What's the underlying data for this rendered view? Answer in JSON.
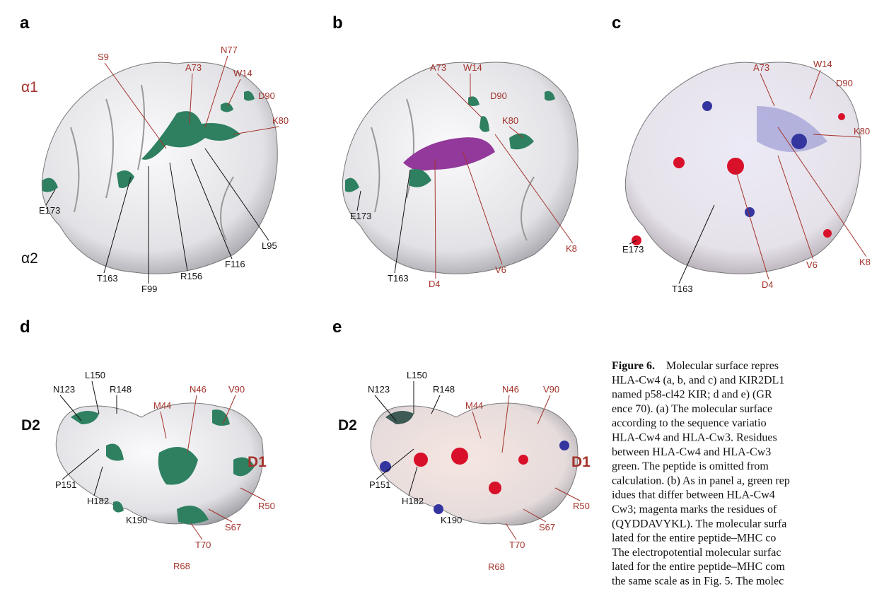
{
  "panels": [
    {
      "letter": "a",
      "labels": [
        "α1",
        "α2",
        "S9",
        "A73",
        "N77",
        "W14",
        "D90",
        "K80",
        "E173",
        "T163",
        "F99",
        "R156",
        "F116",
        "L95"
      ]
    },
    {
      "letter": "b",
      "labels": [
        "A73",
        "W14",
        "D90",
        "K80",
        "E173",
        "T163",
        "D4",
        "V6",
        "K8"
      ]
    },
    {
      "letter": "c",
      "labels": [
        "A73",
        "W14",
        "D90",
        "K80",
        "E173",
        "T163",
        "D4",
        "V6",
        "K8"
      ]
    },
    {
      "letter": "d",
      "labels": [
        "D2",
        "D1",
        "N123",
        "L150",
        "R148",
        "M44",
        "N46",
        "V90",
        "P151",
        "H182",
        "K190",
        "R68",
        "T70",
        "S67",
        "R50"
      ]
    },
    {
      "letter": "e",
      "labels": [
        "D2",
        "D1",
        "N123",
        "L150",
        "R148",
        "M44",
        "N46",
        "V90",
        "P151",
        "H182",
        "K190",
        "R68",
        "T70",
        "S67",
        "R50"
      ]
    }
  ],
  "caption": {
    "heading": "Figure 6.",
    "lines": [
      "Molecular surface repres",
      "HLA-Cw4 (a, b, and c) and KIR2DL1",
      "named p58-cl42 KIR; d and e) (GR",
      "ence 70). (a) The molecular surface",
      "according to the sequence variatio",
      "HLA-Cw4 and HLA-Cw3. Residues",
      "between HLA-Cw4 and HLA-Cw3",
      "green. The peptide is omitted from",
      "calculation. (b) As in panel a, green rep",
      "idues that differ between HLA-Cw4",
      "Cw3; magenta marks the residues of",
      "(QYDDAVYKL). The molecular surfa",
      "lated for the entire peptide–MHC co",
      "The electropotential molecular surfac",
      "lated for the entire peptide–MHC com",
      "the same scale as in Fig. 5. The molec"
    ]
  }
}
